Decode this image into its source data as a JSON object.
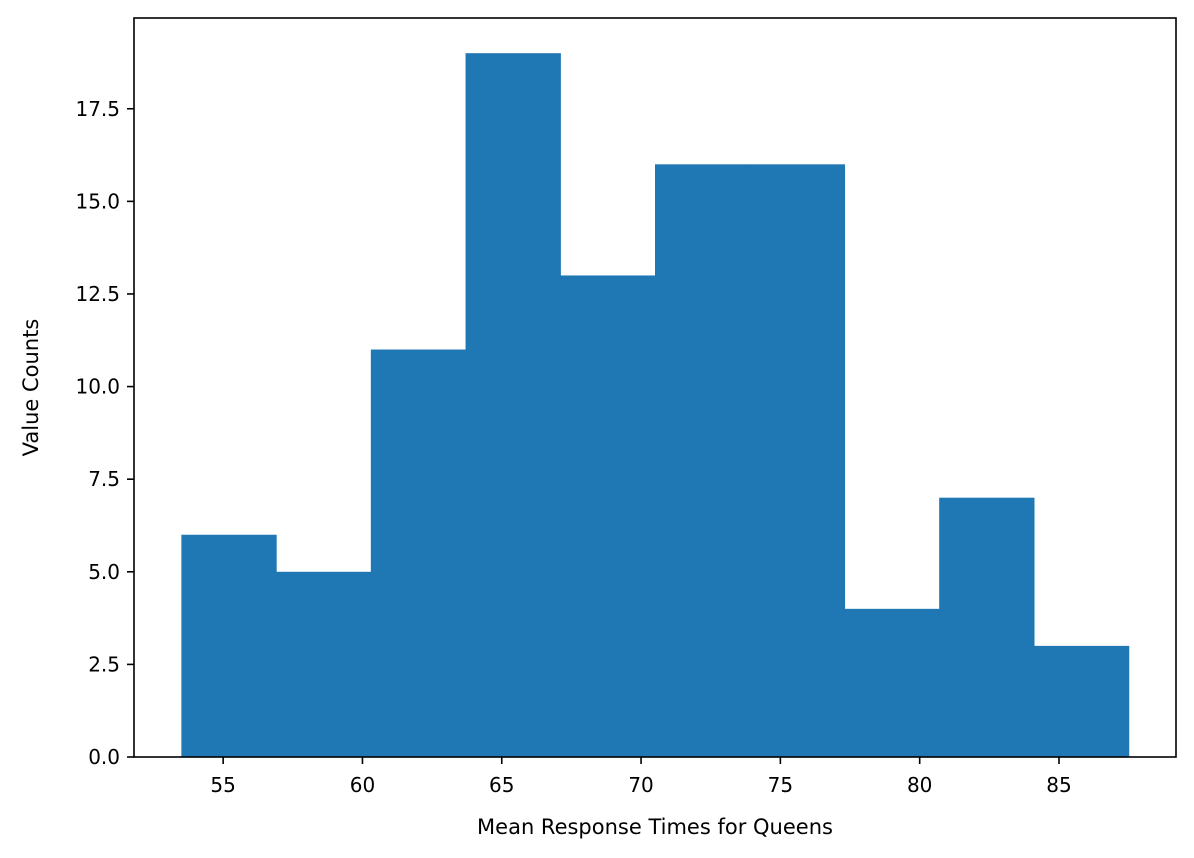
{
  "chart_data": {
    "type": "bar",
    "subtype": "histogram",
    "title": "",
    "xlabel": "Mean Response Times for Queens",
    "ylabel": "Value Counts",
    "bin_edges": [
      53.5,
      56.9,
      60.3,
      63.7,
      67.1,
      70.5,
      73.9,
      77.3,
      80.7,
      84.1,
      87.5
    ],
    "values": [
      6,
      5,
      11,
      19,
      13,
      16,
      16,
      4,
      7,
      3
    ],
    "xlim": [
      51.8,
      89.2
    ],
    "ylim": [
      0,
      19.95
    ],
    "xticks": [
      55,
      60,
      65,
      70,
      75,
      80,
      85
    ],
    "xtick_labels": [
      "55",
      "60",
      "65",
      "70",
      "75",
      "80",
      "85"
    ],
    "yticks": [
      0,
      2.5,
      5,
      7.5,
      10,
      12.5,
      15,
      17.5
    ],
    "ytick_labels": [
      "0.0",
      "2.5",
      "5.0",
      "7.5",
      "10.0",
      "12.5",
      "15.0",
      "17.5"
    ],
    "bar_color": "#1f77b4",
    "grid": false,
    "legend": "none"
  }
}
